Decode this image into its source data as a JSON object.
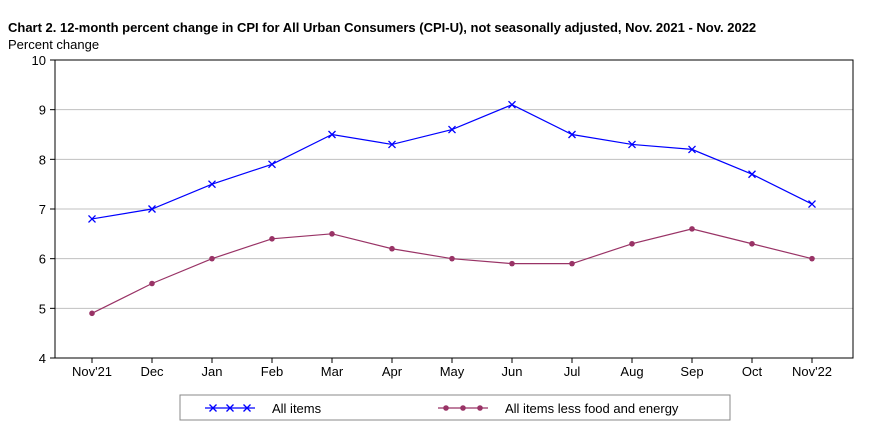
{
  "chart_data": {
    "type": "line",
    "title": "Chart 2. 12-month percent change in CPI for All Urban Consumers (CPI-U), not seasonally adjusted, Nov. 2021 - Nov. 2022",
    "ylabel": "Percent change",
    "xlabel": "",
    "categories": [
      "Nov'21",
      "Dec",
      "Jan",
      "Feb",
      "Mar",
      "Apr",
      "May",
      "Jun",
      "Jul",
      "Aug",
      "Sep",
      "Oct",
      "Nov'22"
    ],
    "ylim": [
      4,
      10
    ],
    "yticks": [
      4,
      5,
      6,
      7,
      8,
      9,
      10
    ],
    "grid": true,
    "legend_position": "bottom",
    "series": [
      {
        "name": "All items",
        "color": "#0000ff",
        "marker": "x",
        "values": [
          6.8,
          7.0,
          7.5,
          7.9,
          8.5,
          8.3,
          8.6,
          9.1,
          8.5,
          8.3,
          8.2,
          7.7,
          7.1
        ]
      },
      {
        "name": "All items less food and energy",
        "color": "#993366",
        "marker": "circle",
        "values": [
          4.9,
          5.5,
          6.0,
          6.4,
          6.5,
          6.2,
          6.0,
          5.9,
          5.9,
          6.3,
          6.6,
          6.3,
          6.0
        ]
      }
    ]
  }
}
